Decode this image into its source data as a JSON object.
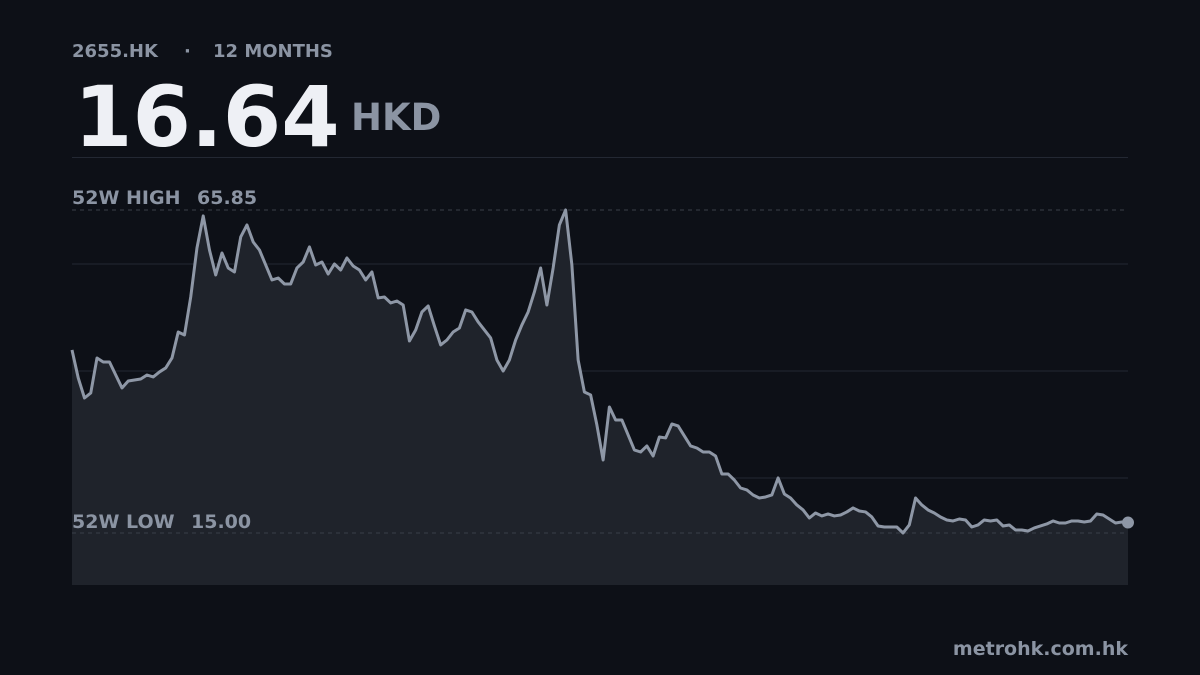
{
  "chart_data": {
    "type": "line",
    "ticker": "2655.HK",
    "separator": "·",
    "period": "12 MONTHS",
    "price": 16.64,
    "currency": "HKD",
    "high_label": "52W HIGH",
    "high": 65.85,
    "low_label": "52W LOW",
    "low": {
      "value": 15,
      "label": "15.00"
    },
    "source": "metrohk.com.hk",
    "color": "#8e97a6",
    "grid": true,
    "ylim": [
      6.81,
      74.19
    ],
    "values": [
      43.81,
      39.4,
      36.25,
      37.04,
      42.55,
      41.92,
      41.92,
      39.87,
      37.83,
      38.93,
      39.09,
      39.24,
      39.87,
      39.56,
      40.35,
      40.98,
      42.55,
      46.64,
      46.17,
      52.15,
      59.87,
      64.91,
      59.55,
      55.62,
      59.08,
      56.72,
      56.09,
      61.6,
      63.49,
      60.81,
      59.55,
      57.19,
      54.83,
      55.14,
      54.2,
      54.2,
      56.72,
      57.66,
      60.03,
      57.19,
      57.66,
      55.77,
      57.35,
      56.4,
      58.29,
      57.03,
      56.4,
      54.83,
      56.09,
      52.0,
      52.15,
      51.21,
      51.52,
      50.89,
      45.23,
      46.96,
      49.79,
      50.74,
      47.59,
      44.6,
      45.38,
      46.64,
      47.27,
      50.11,
      49.79,
      48.22,
      46.96,
      45.7,
      42.24,
      40.5,
      42.24,
      45.38,
      47.75,
      49.79,
      52.94,
      56.72,
      50.89,
      56.72,
      63.49,
      65.85,
      57.19,
      42.24,
      37.2,
      36.73,
      32.0,
      26.49,
      34.84,
      32.79,
      32.79,
      30.43,
      28.07,
      27.75,
      28.7,
      27.12,
      30.11,
      29.96,
      32.16,
      31.85,
      30.27,
      28.7,
      28.38,
      27.75,
      27.75,
      27.12,
      24.29,
      24.29,
      23.34,
      22.08,
      21.77,
      20.98,
      20.51,
      20.67,
      20.98,
      23.66,
      21.14,
      20.51,
      19.41,
      18.62,
      17.36,
      18.15,
      17.68,
      17.99,
      17.68,
      17.83,
      18.31,
      18.94,
      18.46,
      18.31,
      17.52,
      16.1,
      15.94,
      15.94,
      15.94,
      15.0,
      16.26,
      20.51,
      19.41,
      18.62,
      18.15,
      17.52,
      17.05,
      16.89,
      17.2,
      17.05,
      15.94,
      16.26,
      17.05,
      16.89,
      17.05,
      16.1,
      16.26,
      15.47,
      15.47,
      15.31,
      15.79,
      16.1,
      16.42,
      16.89,
      16.57,
      16.57,
      16.89,
      16.89,
      16.73,
      16.89,
      17.99,
      17.83,
      17.2,
      16.57,
      16.73,
      16.64
    ]
  }
}
